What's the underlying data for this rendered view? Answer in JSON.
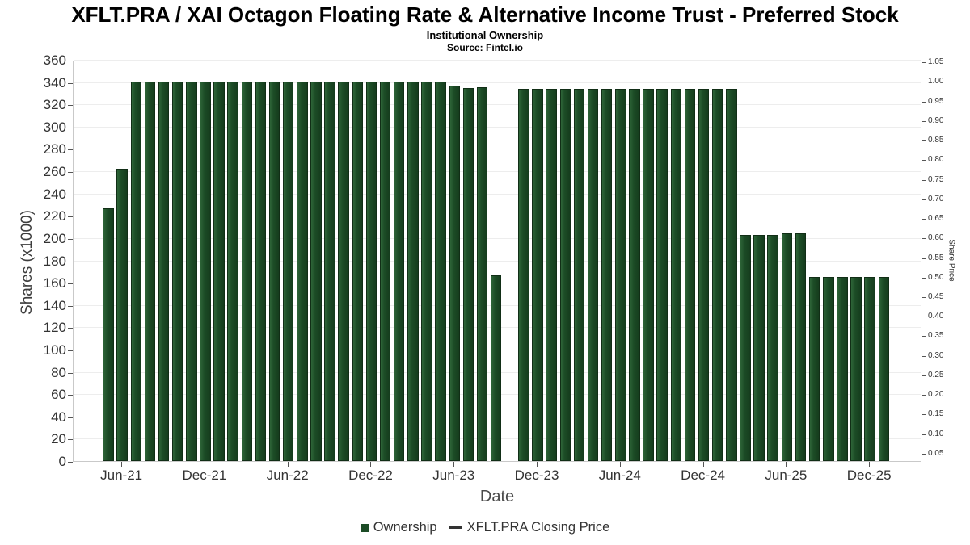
{
  "chart_data": {
    "type": "bar",
    "title": "XFLT.PRA / XAI Octagon Floating Rate & Alternative Income Trust - Preferred Stock",
    "subtitle": "Institutional Ownership",
    "source": "Source: Fintel.io",
    "xlabel": "Date",
    "ylabel_left": "Shares (x1000)",
    "ylabel_right": "Share Price",
    "ylim_left": [
      0,
      360
    ],
    "ytick_step_left": 20,
    "right_tick_labels": [
      "0.05",
      "0.10",
      "0.15",
      "0.20",
      "0.25",
      "0.30",
      "0.35",
      "0.40",
      "0.45",
      "0.50",
      "0.55",
      "0.60",
      "0.65",
      "0.70",
      "0.75",
      "0.80",
      "0.85",
      "0.90",
      "0.95",
      "1.00",
      "1.05"
    ],
    "x_tick_labels": [
      "Jun-21",
      "Dec-21",
      "Jun-22",
      "Dec-22",
      "Jun-23",
      "Dec-23",
      "Jun-24",
      "Dec-24",
      "Jun-25",
      "Dec-25"
    ],
    "x_tick_month_indices": [
      1,
      7,
      13,
      19,
      25,
      31,
      37,
      43,
      49,
      55
    ],
    "grid": "horizontal-light",
    "bar_color": "#1c4c26",
    "legend": [
      {
        "label": "Ownership",
        "symbol": "square",
        "color": "#1c4c26"
      },
      {
        "label": "XFLT.PRA Closing Price",
        "symbol": "line",
        "color": "#333333"
      }
    ],
    "categories": [
      "May-21",
      "Jun-21",
      "Jul-21",
      "Aug-21",
      "Sep-21",
      "Oct-21",
      "Nov-21",
      "Dec-21",
      "Jan-22",
      "Feb-22",
      "Mar-22",
      "Apr-22",
      "May-22",
      "Jun-22",
      "Jul-22",
      "Aug-22",
      "Sep-22",
      "Oct-22",
      "Nov-22",
      "Dec-22",
      "Jan-23",
      "Feb-23",
      "Mar-23",
      "Apr-23",
      "May-23",
      "Jun-23",
      "Jul-23",
      "Aug-23",
      "Sep-23",
      "Oct-23",
      "Nov-23",
      "Dec-23",
      "Jan-24",
      "Feb-24",
      "Mar-24",
      "Apr-24",
      "May-24",
      "Jun-24",
      "Jul-24",
      "Aug-24",
      "Sep-24",
      "Oct-24",
      "Nov-24",
      "Dec-24",
      "Jan-25",
      "Feb-25",
      "Mar-25",
      "Apr-25",
      "May-25",
      "Jun-25",
      "Jul-25",
      "Aug-25",
      "Sep-25",
      "Oct-25",
      "Nov-25",
      "Dec-25",
      "Jan-26"
    ],
    "values": [
      228,
      263,
      342,
      342,
      342,
      342,
      342,
      342,
      342,
      342,
      342,
      342,
      342,
      342,
      342,
      342,
      342,
      342,
      342,
      342,
      342,
      342,
      342,
      342,
      342,
      338,
      336,
      337,
      167,
      null,
      335,
      335,
      335,
      335,
      335,
      335,
      335,
      335,
      335,
      335,
      335,
      335,
      335,
      335,
      335,
      335,
      204,
      204,
      204,
      205,
      205,
      166,
      166,
      166,
      166,
      166,
      166
    ]
  }
}
